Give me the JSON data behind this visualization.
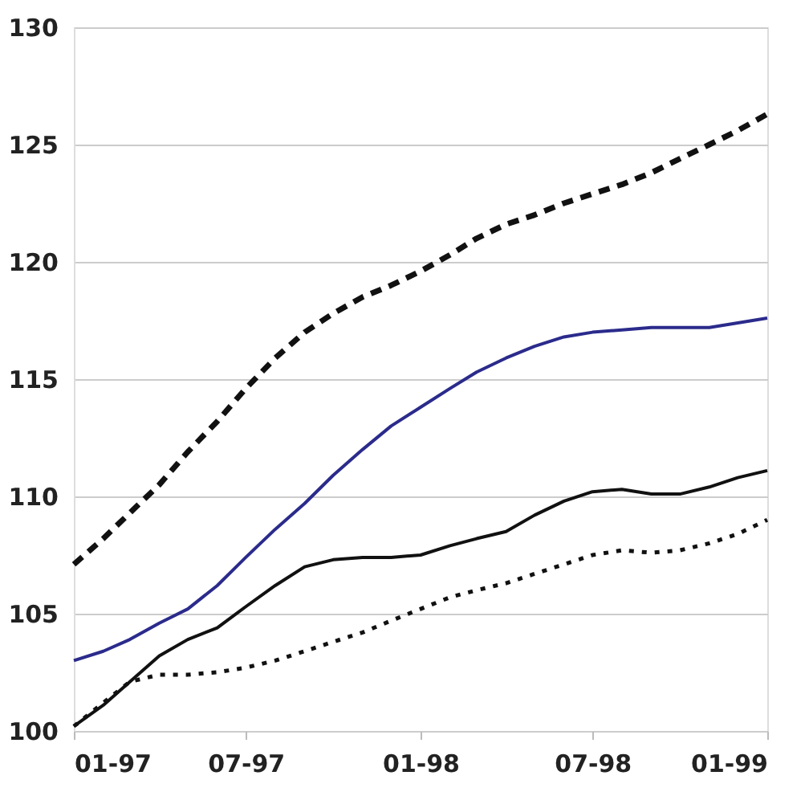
{
  "chart_data": {
    "type": "line",
    "x": [
      "1997-01",
      "1997-02",
      "1997-03",
      "1997-04",
      "1997-05",
      "1997-06",
      "1997-07",
      "1997-08",
      "1997-09",
      "1997-10",
      "1997-11",
      "1997-12",
      "1998-01",
      "1998-02",
      "1998-03",
      "1998-04",
      "1998-05",
      "1998-06",
      "1998-07",
      "1998-08",
      "1998-09",
      "1998-10",
      "1998-11",
      "1998-12",
      "1999-01"
    ],
    "series": [
      {
        "color": "#111111",
        "line_style": "dashed",
        "values": [
          107.1,
          108.2,
          109.3,
          110.5,
          111.9,
          113.2,
          114.6,
          115.9,
          117.0,
          117.8,
          118.5,
          119.0,
          119.6,
          120.3,
          121.0,
          121.6,
          122.0,
          122.5,
          122.9,
          123.3,
          123.8,
          124.4,
          125.0,
          125.6,
          126.3
        ]
      },
      {
        "color": "#2b2b8c",
        "line_style": "solid",
        "values": [
          103.0,
          103.4,
          103.9,
          104.6,
          105.2,
          106.2,
          107.4,
          108.6,
          109.7,
          110.9,
          112.0,
          113.0,
          113.8,
          114.6,
          115.3,
          115.9,
          116.4,
          116.8,
          117.0,
          117.1,
          117.2,
          117.2,
          117.2,
          117.4,
          117.6
        ]
      },
      {
        "color": "#111111",
        "line_style": "solid",
        "values": [
          100.2,
          101.1,
          102.1,
          103.2,
          103.9,
          104.4,
          105.3,
          106.2,
          107.0,
          107.3,
          107.4,
          107.4,
          107.5,
          107.9,
          108.2,
          108.5,
          109.2,
          109.8,
          110.2,
          110.3,
          110.1,
          110.1,
          110.4,
          110.8,
          111.1
        ]
      },
      {
        "color": "#111111",
        "line_style": "dotted",
        "values": [
          100.2,
          101.2,
          102.1,
          102.4,
          102.4,
          102.5,
          102.7,
          103.0,
          103.4,
          103.8,
          104.2,
          104.7,
          105.2,
          105.7,
          106.0,
          106.3,
          106.7,
          107.1,
          107.5,
          107.7,
          107.6,
          107.7,
          108.0,
          108.4,
          109.0
        ]
      }
    ],
    "xlim": [
      "1997-01",
      "1999-01"
    ],
    "xticks": [
      {
        "value": "1997-01",
        "label": "01-97"
      },
      {
        "value": "1997-07",
        "label": "07-97"
      },
      {
        "value": "1998-01",
        "label": "01-98"
      },
      {
        "value": "1998-07",
        "label": "07-98"
      },
      {
        "value": "1999-01",
        "label": "01-99"
      }
    ],
    "ylim": [
      100,
      130
    ],
    "yticks": [
      100,
      105,
      110,
      115,
      120,
      125,
      130
    ],
    "grid": "y",
    "marker": "none"
  }
}
